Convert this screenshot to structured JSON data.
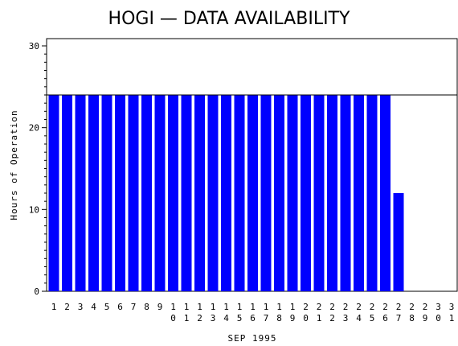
{
  "chart_data": {
    "type": "bar",
    "title": "HOGI — DATA AVAILABILITY",
    "xlabel": "SEP 1995",
    "ylabel": "Hours of Operation",
    "ylim": [
      0,
      30
    ],
    "yticks": [
      0,
      10,
      20,
      30
    ],
    "reference_line": 24,
    "bar_color": "#0000ff",
    "categories": [
      "1",
      "2",
      "3",
      "4",
      "5",
      "6",
      "7",
      "8",
      "9",
      "10",
      "11",
      "12",
      "13",
      "14",
      "15",
      "16",
      "17",
      "18",
      "19",
      "20",
      "21",
      "22",
      "23",
      "24",
      "25",
      "26",
      "27",
      "28",
      "29",
      "30",
      "31"
    ],
    "values": [
      24,
      24,
      24,
      24,
      24,
      24,
      24,
      24,
      24,
      24,
      24,
      24,
      24,
      24,
      24,
      24,
      24,
      24,
      24,
      24,
      24,
      24,
      24,
      24,
      24,
      24,
      12,
      0,
      0,
      0,
      0
    ]
  }
}
